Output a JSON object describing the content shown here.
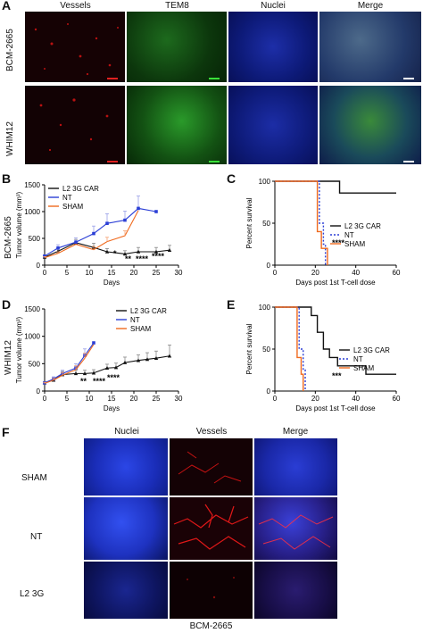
{
  "panels": {
    "A": {
      "letter": "A",
      "columns": [
        "Vessels",
        "TEM8",
        "Nuclei",
        "Merge"
      ],
      "rows": [
        "BCM-2665",
        "WHIM12"
      ]
    },
    "B": {
      "letter": "B",
      "row_label": "BCM-2665"
    },
    "C": {
      "letter": "C"
    },
    "D": {
      "letter": "D",
      "row_label": "WHIM12"
    },
    "E": {
      "letter": "E"
    },
    "F": {
      "letter": "F",
      "columns": [
        "Nuclei",
        "Vessels",
        "Merge"
      ],
      "rows": [
        "SHAM",
        "NT",
        "L2 3G"
      ],
      "footer": "BCM-2665"
    }
  },
  "colors": {
    "car": "#111111",
    "nt": "#2b3fd6",
    "sham": "#f06a1e",
    "vessels": "#d41414",
    "tem8": "#2fbf2f",
    "nuclei": "#1c2fd8"
  },
  "chart_data": [
    {
      "id": "B",
      "type": "line",
      "xlabel": "Days",
      "ylabel": "Tumor volume (mm³)",
      "xlim": [
        0,
        30
      ],
      "ylim": [
        0,
        1500
      ],
      "xticks": [
        0,
        5,
        10,
        15,
        20,
        25,
        30
      ],
      "yticks": [
        0,
        500,
        1000,
        1500
      ],
      "legend_position": "top-left",
      "series": [
        {
          "name": "L2 3G CAR",
          "marker": "triangle",
          "x": [
            0,
            3,
            7,
            11,
            14,
            18,
            21,
            25,
            28
          ],
          "y": [
            150,
            260,
            420,
            330,
            250,
            210,
            250,
            250,
            280
          ],
          "err": [
            20,
            40,
            60,
            80,
            60,
            60,
            80,
            80,
            90
          ]
        },
        {
          "name": "NT",
          "marker": "square",
          "x": [
            0,
            3,
            7,
            11,
            14,
            18,
            21,
            25
          ],
          "y": [
            170,
            320,
            430,
            590,
            780,
            840,
            1060,
            1000
          ],
          "err": [
            20,
            60,
            80,
            140,
            180,
            170,
            230,
            0
          ]
        },
        {
          "name": "SHAM",
          "marker": "none",
          "x": [
            0,
            3,
            7,
            11,
            14,
            18,
            21
          ],
          "y": [
            140,
            220,
            390,
            290,
            440,
            550,
            1020
          ],
          "err": [
            20,
            30,
            0,
            60,
            80,
            90,
            0
          ]
        }
      ],
      "annotations": [
        "*",
        "**",
        "****",
        "****"
      ]
    },
    {
      "id": "C",
      "type": "line",
      "subtype": "step",
      "xlabel": "Days post 1st T-cell dose",
      "ylabel": "Percent survival",
      "xlim": [
        0,
        60
      ],
      "ylim": [
        0,
        100
      ],
      "xticks": [
        0,
        20,
        40,
        60
      ],
      "yticks": [
        0,
        50,
        100
      ],
      "legend_position": "right",
      "series": [
        {
          "name": "L2 3G CAR",
          "x": [
            0,
            32,
            32,
            60
          ],
          "y": [
            100,
            100,
            86,
            86
          ]
        },
        {
          "name": "NT",
          "x": [
            0,
            22,
            22,
            24,
            24,
            25,
            25
          ],
          "y": [
            100,
            100,
            50,
            50,
            25,
            25,
            0
          ]
        },
        {
          "name": "SHAM",
          "x": [
            0,
            21,
            21,
            23,
            23,
            26,
            26
          ],
          "y": [
            100,
            100,
            40,
            40,
            20,
            20,
            0
          ]
        }
      ],
      "annotations": [
        "****"
      ]
    },
    {
      "id": "D",
      "type": "line",
      "xlabel": "Days",
      "ylabel": "Tumor volume (mm³)",
      "xlim": [
        0,
        30
      ],
      "ylim": [
        0,
        1500
      ],
      "xticks": [
        0,
        5,
        10,
        15,
        20,
        25,
        30
      ],
      "yticks": [
        0,
        500,
        1000,
        1500
      ],
      "legend_position": "top-right",
      "series": [
        {
          "name": "L2 3G CAR",
          "marker": "triangle",
          "x": [
            0,
            2,
            4,
            7,
            9,
            11,
            14,
            16,
            18,
            21,
            23,
            25,
            28
          ],
          "y": [
            150,
            200,
            300,
            320,
            320,
            330,
            420,
            430,
            520,
            560,
            580,
            600,
            640
          ],
          "err": [
            20,
            40,
            60,
            60,
            60,
            60,
            70,
            80,
            100,
            100,
            120,
            130,
            200
          ]
        },
        {
          "name": "NT",
          "marker": "square",
          "x": [
            0,
            2,
            4,
            7,
            9,
            11
          ],
          "y": [
            150,
            220,
            320,
            420,
            650,
            880
          ],
          "err": [
            20,
            40,
            60,
            80,
            120,
            0
          ]
        },
        {
          "name": "SHAM",
          "marker": "none",
          "x": [
            0,
            2,
            4,
            7,
            9,
            11
          ],
          "y": [
            140,
            200,
            290,
            390,
            600,
            850
          ],
          "err": [
            20,
            30,
            50,
            70,
            90,
            0
          ]
        }
      ],
      "annotations": [
        "**",
        "****",
        "****"
      ]
    },
    {
      "id": "E",
      "type": "line",
      "subtype": "step",
      "xlabel": "Days post 1st T-cell dose",
      "ylabel": "Percent survival",
      "xlim": [
        0,
        60
      ],
      "ylim": [
        0,
        100
      ],
      "xticks": [
        0,
        20,
        40,
        60
      ],
      "yticks": [
        0,
        50,
        100
      ],
      "legend_position": "right",
      "series": [
        {
          "name": "L2 3G CAR",
          "x": [
            0,
            18,
            18,
            21,
            21,
            24,
            24,
            27,
            27,
            31,
            31,
            45,
            45,
            60
          ],
          "y": [
            100,
            100,
            90,
            90,
            70,
            70,
            50,
            50,
            40,
            40,
            30,
            30,
            20,
            20
          ]
        },
        {
          "name": "NT",
          "x": [
            0,
            12,
            12,
            14,
            14,
            15,
            15
          ],
          "y": [
            100,
            100,
            50,
            50,
            25,
            25,
            0
          ]
        },
        {
          "name": "SHAM",
          "x": [
            0,
            11,
            11,
            13,
            13,
            14,
            14
          ],
          "y": [
            100,
            100,
            40,
            40,
            20,
            20,
            0
          ]
        }
      ],
      "annotations": [
        "***"
      ]
    }
  ]
}
